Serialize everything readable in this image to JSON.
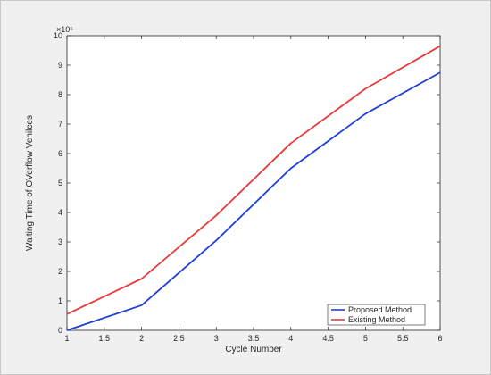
{
  "chart_data": {
    "type": "line",
    "x": [
      1,
      2,
      3,
      4,
      5,
      6
    ],
    "series": [
      {
        "name": "Proposed Method",
        "color": "#1f3fd6",
        "values": [
          0.0,
          0.85,
          3.05,
          5.5,
          7.35,
          8.75
        ]
      },
      {
        "name": "Existing Method",
        "color": "#e83a3a",
        "values": [
          0.55,
          1.75,
          3.9,
          6.35,
          8.2,
          9.65
        ]
      }
    ],
    "xlabel": "Cycle Number",
    "ylabel": "Waiting Time of OVerflow Vehilces",
    "xlim": [
      1,
      6
    ],
    "ylim": [
      0,
      10
    ],
    "xticks": [
      "1",
      "1.5",
      "2",
      "2.5",
      "3",
      "3.5",
      "4",
      "4.5",
      "5",
      "5.5",
      "6"
    ],
    "yticks": [
      "0",
      "1",
      "2",
      "3",
      "4",
      "5",
      "6",
      "7",
      "8",
      "9",
      "10"
    ],
    "y_exponent": "×10⁵",
    "grid": false,
    "legend_position": "bottom-right"
  }
}
